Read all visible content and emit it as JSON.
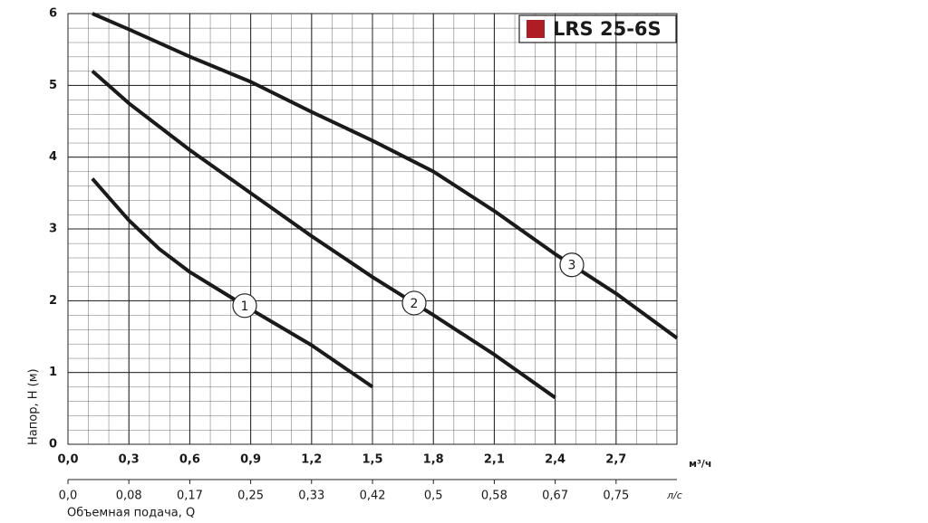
{
  "chart_data": {
    "type": "line",
    "title": "LRS 25-6S",
    "legend_color": "#b01c24",
    "ylabel": "Напор, H (м)",
    "xunit": "м³/ч",
    "x2unit": "л/с",
    "x2label": "Объемная подача, Q",
    "xlim": [
      0,
      3.0
    ],
    "ylim": [
      0,
      6
    ],
    "x2lim": [
      0,
      0.8333
    ],
    "grid": true,
    "xticks": [
      {
        "value": 0,
        "label": "0,0"
      },
      {
        "value": 0.3,
        "label": "0,3"
      },
      {
        "value": 0.6,
        "label": "0,6"
      },
      {
        "value": 0.9,
        "label": "0,9"
      },
      {
        "value": 1.2,
        "label": "1,2"
      },
      {
        "value": 1.5,
        "label": "1,5"
      },
      {
        "value": 1.8,
        "label": "1,8"
      },
      {
        "value": 2.1,
        "label": "2,1"
      },
      {
        "value": 2.4,
        "label": "2,4"
      },
      {
        "value": 2.7,
        "label": "2,7"
      }
    ],
    "yticks": [
      0,
      1,
      2,
      3,
      4,
      5,
      6
    ],
    "x2ticks": [
      {
        "value": 0,
        "label": "0,0"
      },
      {
        "value": 0.0833,
        "label": "0,08"
      },
      {
        "value": 0.1667,
        "label": "0,17"
      },
      {
        "value": 0.25,
        "label": "0,25"
      },
      {
        "value": 0.3333,
        "label": "0,33"
      },
      {
        "value": 0.4167,
        "label": "0,42"
      },
      {
        "value": 0.5,
        "label": "0,5"
      },
      {
        "value": 0.5833,
        "label": "0,58"
      },
      {
        "value": 0.6667,
        "label": "0,67"
      },
      {
        "value": 0.75,
        "label": "0,75"
      }
    ],
    "series": [
      {
        "name": "1",
        "color": "#1a1a1a",
        "x": [
          0.12,
          0.3,
          0.45,
          0.6,
          0.9,
          1.2,
          1.5
        ],
        "values": [
          3.7,
          3.12,
          2.72,
          2.4,
          1.88,
          1.38,
          0.8
        ]
      },
      {
        "name": "2",
        "color": "#1a1a1a",
        "x": [
          0.12,
          0.3,
          0.6,
          0.9,
          1.2,
          1.5,
          1.8,
          2.1,
          2.4
        ],
        "values": [
          5.2,
          4.75,
          4.1,
          3.5,
          2.9,
          2.33,
          1.8,
          1.25,
          0.65
        ]
      },
      {
        "name": "3",
        "color": "#1a1a1a",
        "x": [
          0.12,
          0.3,
          0.6,
          0.9,
          1.2,
          1.5,
          1.8,
          2.1,
          2.4,
          2.7,
          3.0
        ],
        "values": [
          6.0,
          5.78,
          5.4,
          5.05,
          4.63,
          4.23,
          3.8,
          3.25,
          2.65,
          2.1,
          1.48
        ]
      }
    ]
  }
}
